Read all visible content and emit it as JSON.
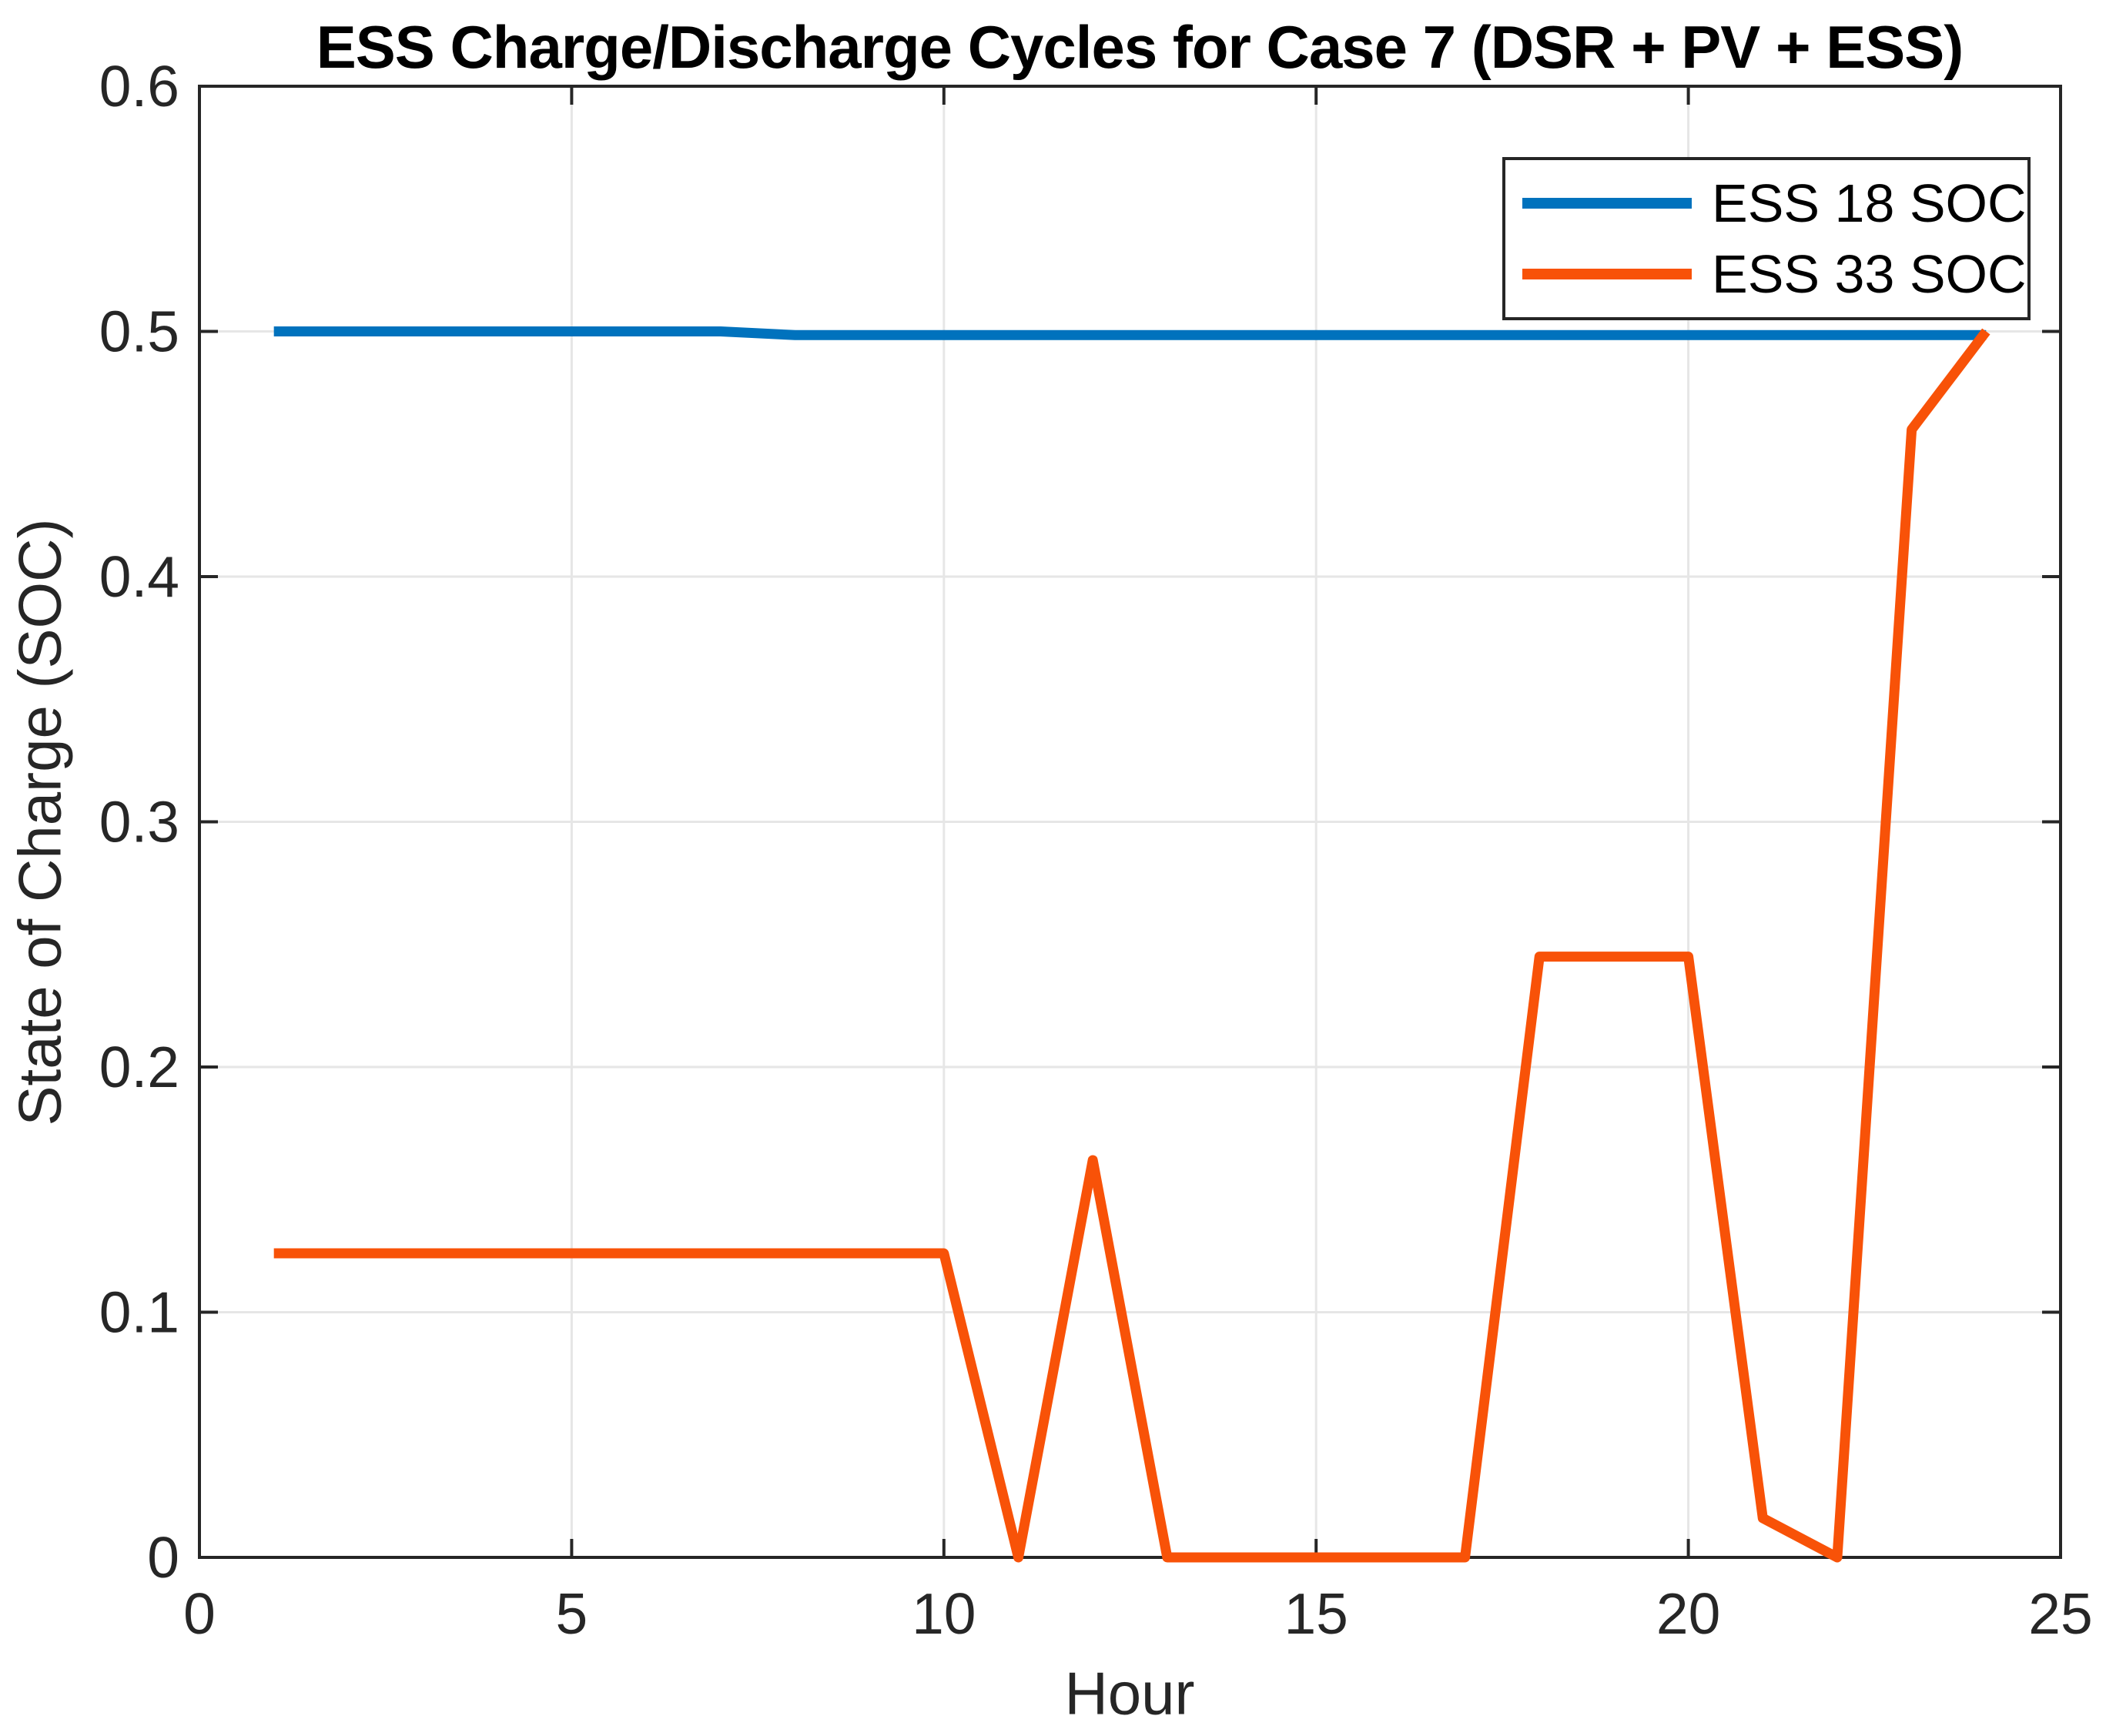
{
  "figure": {
    "title": "ESS Charge/Discharge Cycles for Case 7 (DSR + PV + ESS)"
  },
  "axes": {
    "xlabel": "Hour",
    "ylabel": "State of Charge (SOC)",
    "xtick_labels": [
      "0",
      "5",
      "10",
      "15",
      "20",
      "25"
    ],
    "ytick_labels": [
      "0",
      "0.1",
      "0.2",
      "0.3",
      "0.4",
      "0.5",
      "0.6"
    ]
  },
  "legend": {
    "entries": [
      {
        "label": "ESS 18 SOC",
        "color": "#0072BD"
      },
      {
        "label": "ESS 33 SOC",
        "color": "#F85208"
      }
    ]
  },
  "colors": {
    "background": "#FFFFFF",
    "axis": "#262626",
    "grid": "#E6E6E6",
    "blue_series": "#0072BD",
    "orange_series": "#F85208"
  },
  "chart_data": {
    "type": "line",
    "title": "ESS Charge/Discharge Cycles for Case 7 (DSR + PV + ESS)",
    "xlabel": "Hour",
    "ylabel": "State of Charge (SOC)",
    "x": [
      1,
      2,
      3,
      4,
      5,
      6,
      7,
      8,
      9,
      10,
      11,
      12,
      13,
      14,
      15,
      16,
      17,
      18,
      19,
      20,
      21,
      22,
      23,
      24
    ],
    "series": [
      {
        "name": "ESS 18 SOC",
        "color": "#0072BD",
        "values": [
          0.5,
          0.5,
          0.5,
          0.5,
          0.5,
          0.5,
          0.5,
          0.4985,
          0.4985,
          0.4985,
          0.4985,
          0.4985,
          0.4985,
          0.4985,
          0.4985,
          0.4985,
          0.4985,
          0.4985,
          0.4985,
          0.4985,
          0.4985,
          0.4985,
          0.4985,
          0.4985
        ]
      },
      {
        "name": "ESS 33 SOC",
        "color": "#F85208",
        "values": [
          0.124,
          0.124,
          0.124,
          0.124,
          0.124,
          0.124,
          0.124,
          0.124,
          0.124,
          0.124,
          0,
          0.162,
          0,
          0,
          0,
          0,
          0,
          0.245,
          0.245,
          0.245,
          0.016,
          0,
          0.46,
          0.5
        ]
      }
    ],
    "xlim": [
      0,
      25
    ],
    "ylim": [
      0,
      0.6
    ],
    "xticks": [
      0,
      5,
      10,
      15,
      20,
      25
    ],
    "yticks": [
      0,
      0.1,
      0.2,
      0.3,
      0.4,
      0.5,
      0.6
    ],
    "grid": true,
    "legend_position": "top-right"
  }
}
